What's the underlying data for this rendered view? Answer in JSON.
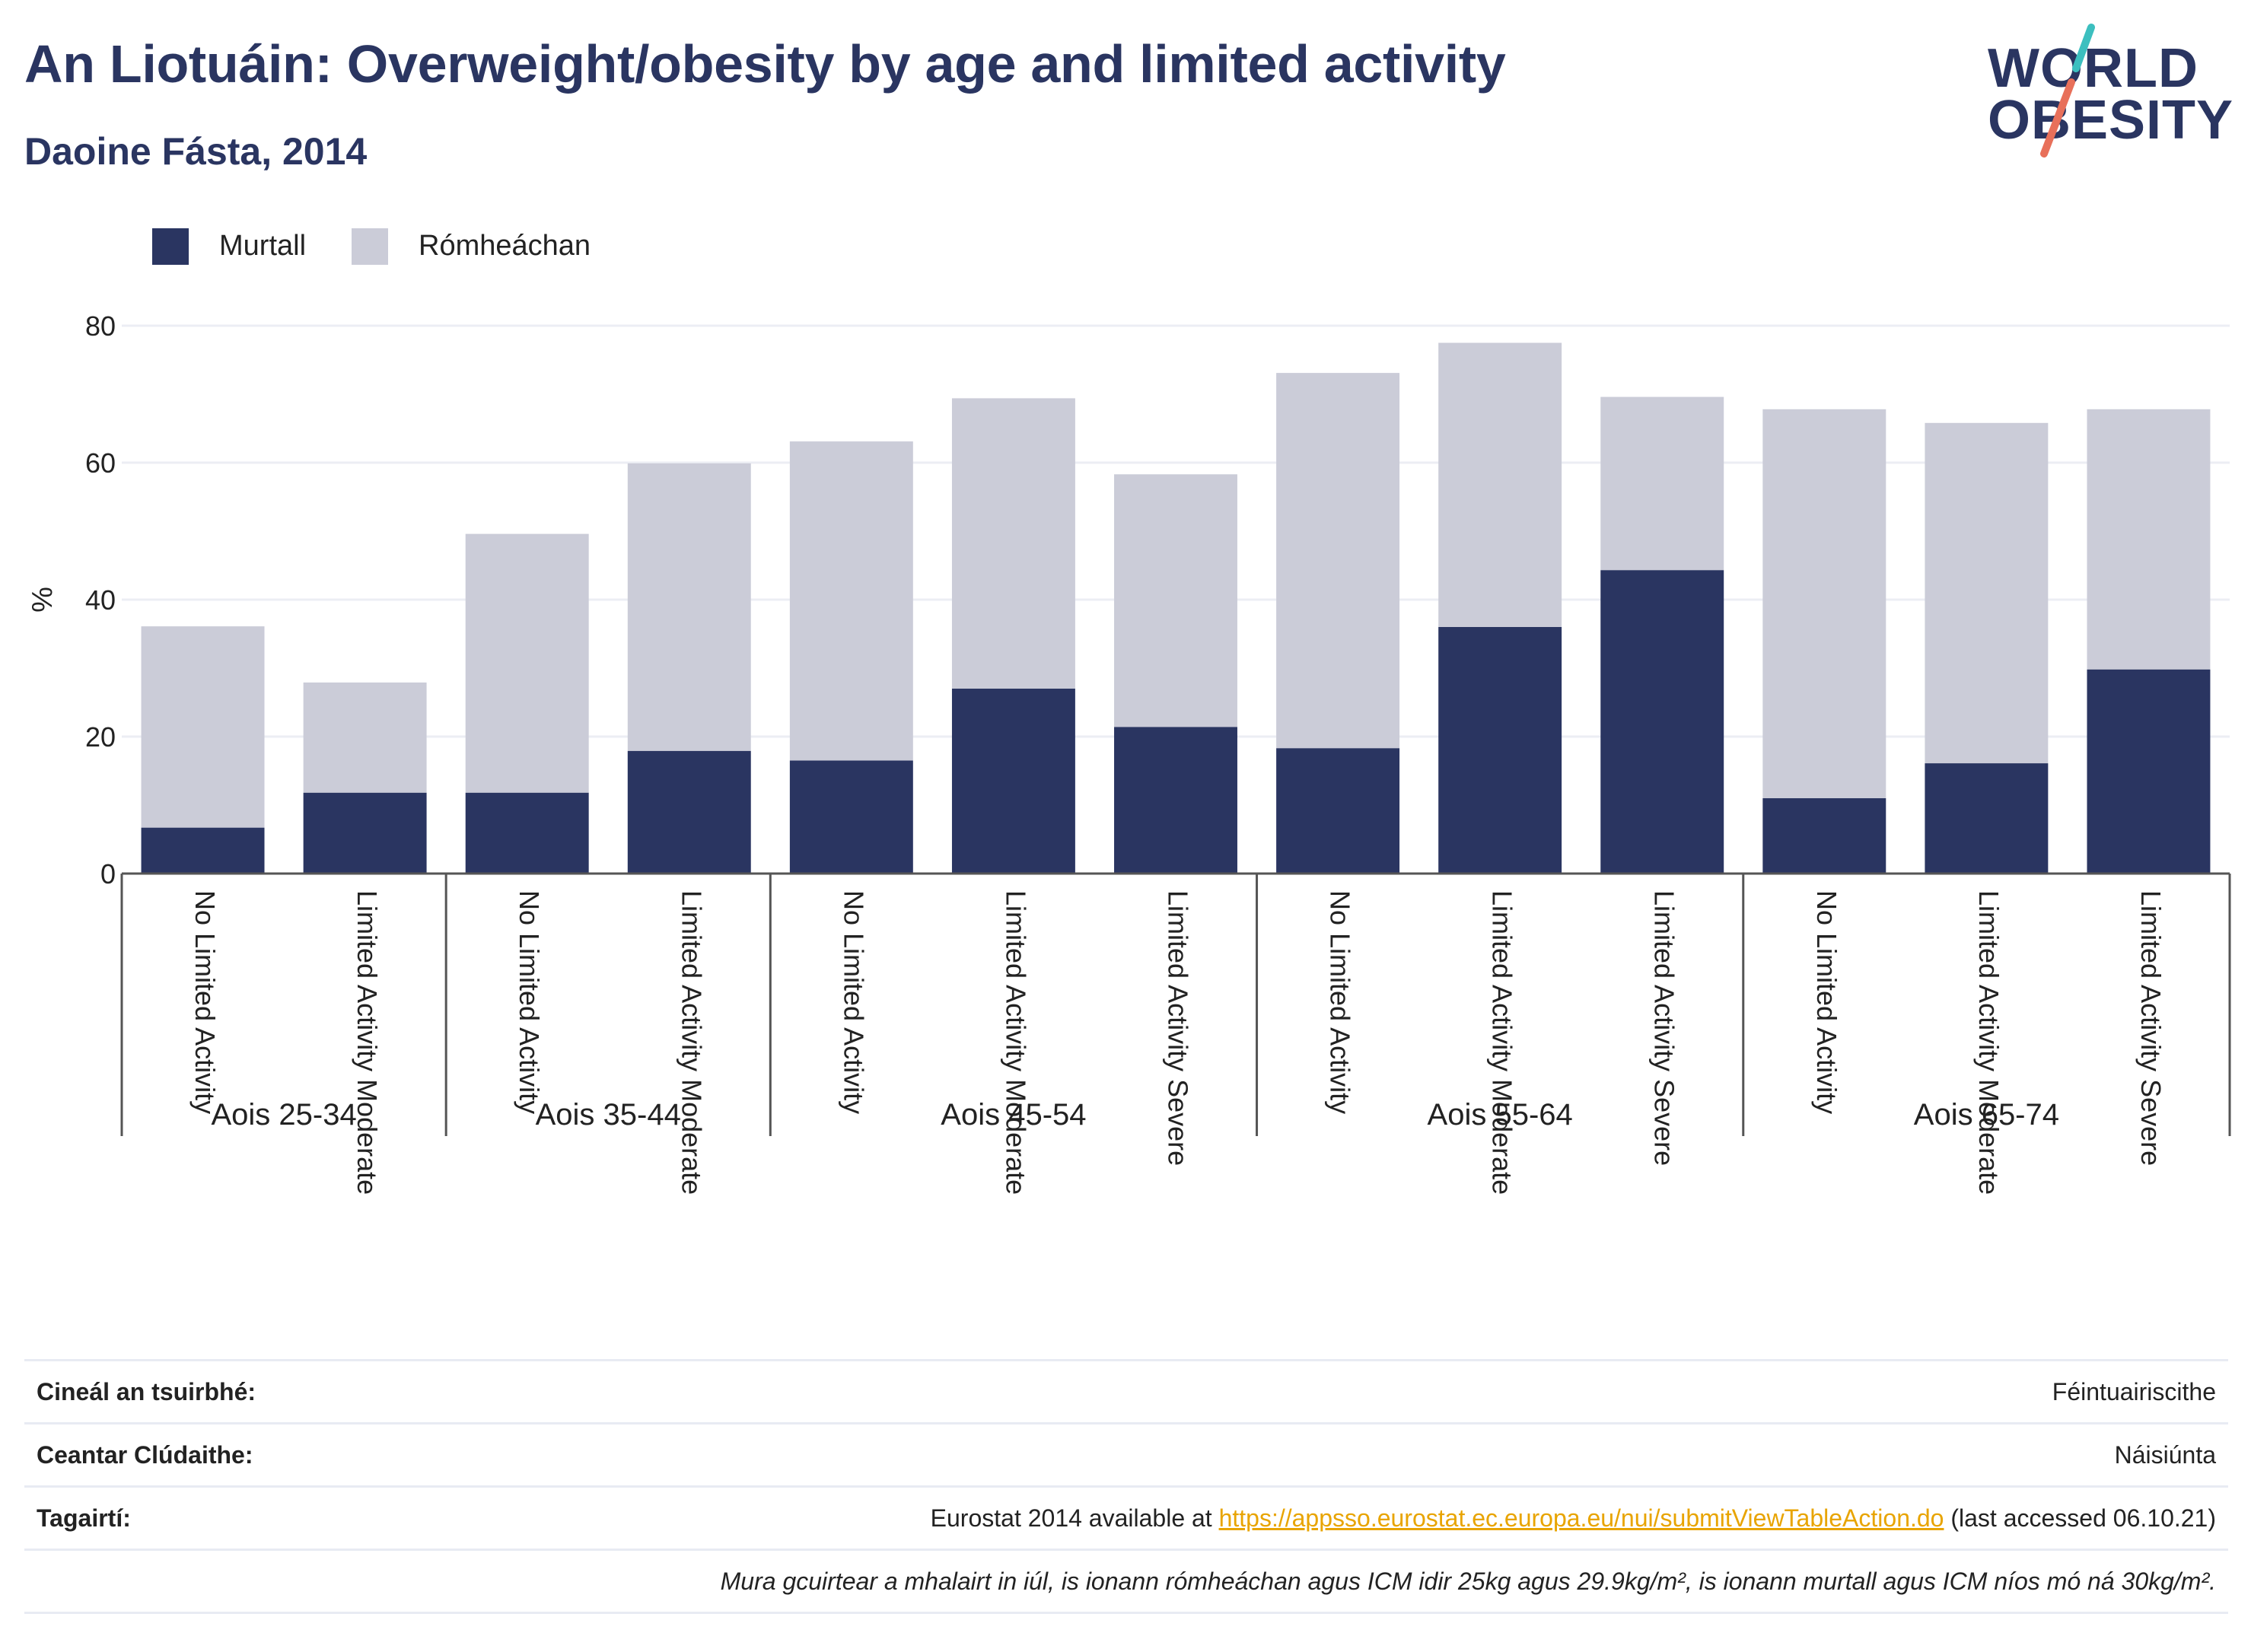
{
  "header": {
    "title": "An Liotuáin: Overweight/obesity by age and limited activity",
    "subtitle": "Daoine Fásta, 2014"
  },
  "logo": {
    "line1": "WORLD",
    "line2": "OBESITY",
    "colors": {
      "text": "#2a3561",
      "slash_top": "#3cbfbf",
      "slash_bottom": "#e8705a"
    }
  },
  "legend": [
    {
      "label": "Murtall",
      "color": "#2a3561"
    },
    {
      "label": "Rómheáchan",
      "color": "#cbccd8"
    }
  ],
  "chart_data": {
    "type": "bar",
    "stacked": true,
    "title": "",
    "ylabel": "%",
    "ylim": [
      0,
      80
    ],
    "yticks": [
      0,
      20,
      40,
      60,
      80
    ],
    "grid": true,
    "legend_position": "top-left",
    "groups": [
      {
        "label": "Aois 25-34",
        "categories": [
          "No Limited Activity",
          "Limited Activity Moderate"
        ]
      },
      {
        "label": "Aois 35-44",
        "categories": [
          "No Limited Activity",
          "Limited Activity Moderate"
        ]
      },
      {
        "label": "Aois 45-54",
        "categories": [
          "No Limited Activity",
          "Limited Activity Moderate",
          "Limited Activity Severe"
        ]
      },
      {
        "label": "Aois 55-64",
        "categories": [
          "No Limited Activity",
          "Limited Activity Moderate",
          "Limited Activity Severe"
        ]
      },
      {
        "label": "Aois 65-74",
        "categories": [
          "No Limited Activity",
          "Limited Activity Moderate",
          "Limited Activity Severe"
        ]
      }
    ],
    "series": [
      {
        "name": "Murtall",
        "color": "#2a3561",
        "values": [
          6.7,
          11.8,
          11.8,
          17.9,
          16.5,
          27.0,
          21.4,
          18.3,
          36.0,
          44.3,
          11.0,
          16.1,
          29.8
        ]
      },
      {
        "name": "Rómheáchan",
        "color": "#cbccd8",
        "values": [
          29.4,
          16.1,
          37.8,
          42.0,
          46.6,
          42.4,
          36.9,
          54.8,
          41.5,
          25.3,
          56.8,
          49.7,
          38.0
        ]
      }
    ]
  },
  "info": {
    "rows": [
      {
        "label": "Cineál an tsuirbhé:",
        "value": "Féintuairiscithe"
      },
      {
        "label": "Ceantar Clúdaithe:",
        "value": "Náisiúnta"
      },
      {
        "label": "Tagairtí:",
        "value_prefix": "Eurostat 2014 available at ",
        "link": "https://appsso.eurostat.ec.europa.eu/nui/submitViewTableAction.do",
        "value_suffix": " (last accessed 06.10.21)"
      }
    ],
    "note": "Mura gcuirtear a mhalairt in iúl, is ionann rómheáchan agus ICM idir 25kg agus 29.9kg/m², is ionann murtall agus ICM níos mó ná 30kg/m²."
  }
}
